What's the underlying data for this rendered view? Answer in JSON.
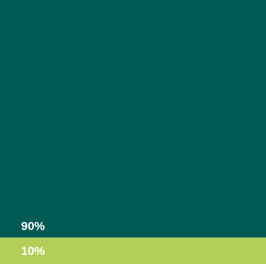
{
  "chart_data": {
    "type": "bar",
    "orientation": "stacked-100-percent",
    "title": "",
    "xlabel": "",
    "ylabel": "",
    "segments": [
      {
        "label": "90%",
        "value": 90,
        "color": "#025a55"
      },
      {
        "label": "10%",
        "value": 10,
        "color": "#b3cf5a"
      }
    ]
  }
}
